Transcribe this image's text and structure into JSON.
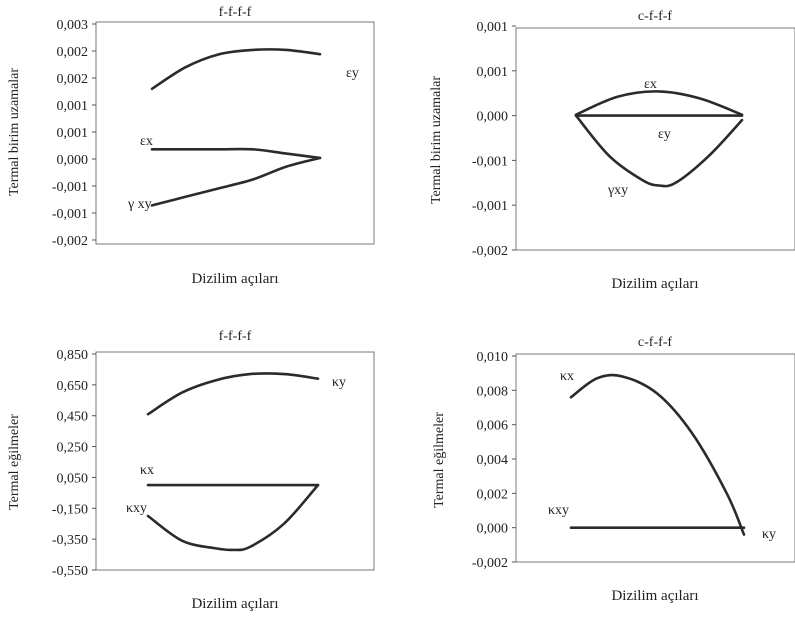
{
  "chart_data": [
    {
      "type": "line",
      "title": "f-f-f-f",
      "xlabel": "Dizilim açıları",
      "ylabel": "Termal birim uzamalar",
      "ticks": [
        "0,003",
        "0,002",
        "0,002",
        "0,001",
        "0,001",
        "0,000",
        "-0,001",
        "-0,001",
        "-0,002"
      ],
      "ylim": [
        -0.002,
        0.003
      ],
      "series": [
        {
          "name": "εy",
          "x": [
            0,
            0.2,
            0.4,
            0.6,
            0.8,
            1.0
          ],
          "y": [
            0.0015,
            0.002,
            0.0023,
            0.0024,
            0.0024,
            0.0023
          ]
        },
        {
          "name": "εx",
          "x": [
            0,
            0.2,
            0.4,
            0.6,
            0.8,
            1.0
          ],
          "y": [
            0.0001,
            0.0001,
            0.0001,
            0.0001,
            0.0,
            -0.0001
          ]
        },
        {
          "name": "γ xy",
          "x": [
            0,
            0.2,
            0.4,
            0.6,
            0.8,
            1.0
          ],
          "y": [
            -0.0012,
            -0.001,
            -0.0008,
            -0.0006,
            -0.0003,
            -0.0001
          ]
        }
      ]
    },
    {
      "type": "line",
      "title": "c-f-f-f",
      "xlabel": "Dizilim açıları",
      "ylabel": "Termal birim uzamalar",
      "ticks": [
        "0,001",
        "0,001",
        "0,000",
        "-0,001",
        "-0,001",
        "-0,002"
      ],
      "ylim": [
        -0.0015,
        0.001
      ],
      "series": [
        {
          "name": "εx",
          "x": [
            0,
            0.25,
            0.5,
            0.75,
            1.0
          ],
          "y": [
            1e-05,
            0.00021,
            0.00027,
            0.00019,
            1e-05
          ]
        },
        {
          "name": "εy",
          "x": [
            0,
            1.0
          ],
          "y": [
            0.0,
            0.0
          ]
        },
        {
          "name": "γxy",
          "x": [
            0,
            0.2,
            0.4,
            0.5,
            0.6,
            0.8,
            1.0
          ],
          "y": [
            0.0,
            -0.00045,
            -0.00072,
            -0.00078,
            -0.00075,
            -0.00045,
            -5e-05
          ]
        }
      ]
    },
    {
      "type": "line",
      "title": "f-f-f-f",
      "xlabel": "Dizilim açıları",
      "ylabel": "Termal eğilmeler",
      "ticks": [
        "0,850",
        "0,650",
        "0,450",
        "0,250",
        "0,050",
        "-0,150",
        "-0,350",
        "-0,550"
      ],
      "ylim": [
        -0.55,
        0.85
      ],
      "series": [
        {
          "name": "κy",
          "x": [
            0,
            0.2,
            0.4,
            0.6,
            0.8,
            1.0
          ],
          "y": [
            0.46,
            0.6,
            0.68,
            0.72,
            0.72,
            0.69
          ]
        },
        {
          "name": "κx",
          "x": [
            0,
            1.0
          ],
          "y": [
            0.0,
            0.0
          ]
        },
        {
          "name": "κxy",
          "x": [
            0,
            0.2,
            0.4,
            0.5,
            0.6,
            0.8,
            1.0
          ],
          "y": [
            -0.2,
            -0.36,
            -0.41,
            -0.42,
            -0.4,
            -0.25,
            0.0
          ]
        }
      ]
    },
    {
      "type": "line",
      "title": "c-f-f-f",
      "xlabel": "Dizilim açıları",
      "ylabel": "Termal eğilmeler",
      "ticks": [
        "0,010",
        "0,008",
        "0,006",
        "0,004",
        "0,002",
        "0,000",
        "-0,002"
      ],
      "ylim": [
        -0.002,
        0.01
      ],
      "series": [
        {
          "name": "κx",
          "x": [
            0,
            0.15,
            0.3,
            0.5,
            0.7,
            0.9,
            1.0
          ],
          "y": [
            0.0076,
            0.0087,
            0.0088,
            0.0078,
            0.0055,
            0.002,
            -0.0004
          ]
        },
        {
          "name": "κxy",
          "x": [
            0,
            1.0
          ],
          "y": [
            0.0,
            0.0
          ]
        },
        {
          "name": "κy",
          "x": [
            1.0
          ],
          "y": [
            0.0
          ]
        }
      ]
    }
  ]
}
